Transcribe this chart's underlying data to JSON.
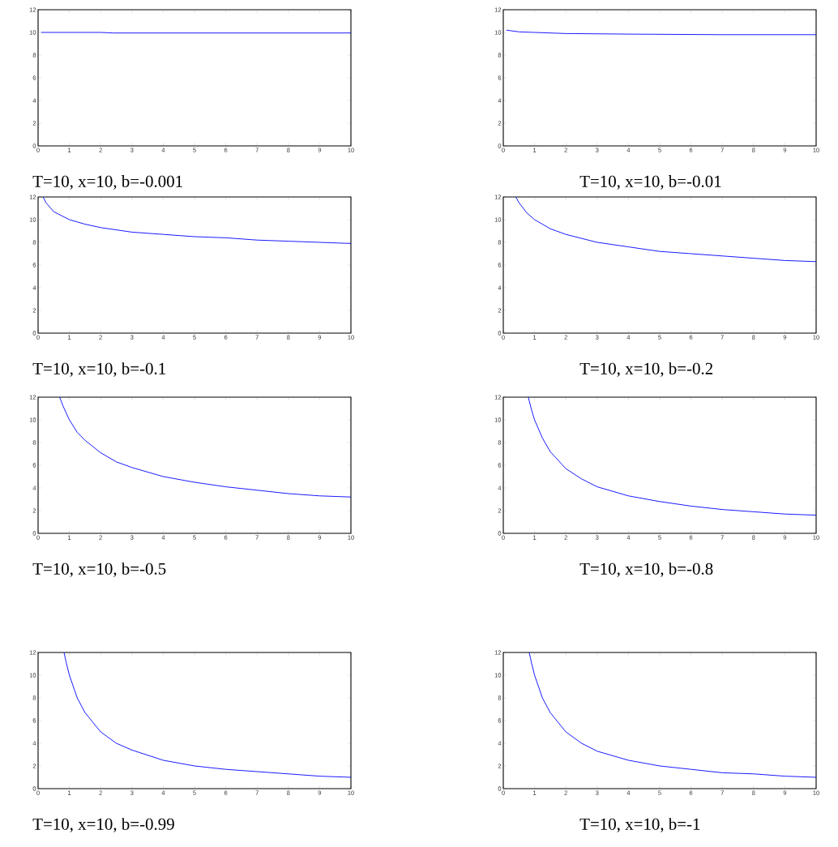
{
  "chart_data": [
    {
      "type": "line",
      "color": "#0000ff",
      "xlim": [
        0,
        10
      ],
      "ylim": [
        0,
        12
      ],
      "xticks": [
        0,
        1,
        2,
        3,
        4,
        5,
        6,
        7,
        8,
        9,
        10
      ],
      "yticks": [
        0,
        2,
        4,
        6,
        8,
        10,
        12
      ],
      "annotations": [
        "T=10, x=10, b=-0.001"
      ],
      "x": [
        0.1,
        2,
        2.4,
        10
      ],
      "values": [
        10.0,
        10.0,
        9.95,
        9.95
      ]
    },
    {
      "type": "line",
      "color": "#0000ff",
      "xlim": [
        0,
        10
      ],
      "ylim": [
        0,
        12
      ],
      "xticks": [
        0,
        1,
        2,
        3,
        4,
        5,
        6,
        7,
        8,
        9,
        10
      ],
      "yticks": [
        0,
        2,
        4,
        6,
        8,
        10,
        12
      ],
      "annotations": [
        "T=10, x=10, b=-0.01"
      ],
      "x": [
        0.1,
        0.5,
        1,
        2,
        4,
        7,
        10
      ],
      "values": [
        10.2,
        10.05,
        10.0,
        9.9,
        9.85,
        9.8,
        9.8
      ]
    },
    {
      "type": "line",
      "color": "#0000ff",
      "xlim": [
        0,
        10
      ],
      "ylim": [
        0,
        12
      ],
      "xticks": [
        0,
        1,
        2,
        3,
        4,
        5,
        6,
        7,
        8,
        9,
        10
      ],
      "yticks": [
        0,
        2,
        4,
        6,
        8,
        10,
        12
      ],
      "annotations": [
        "T=10, x=10, b=-0.1"
      ],
      "x": [
        0.16,
        0.25,
        0.5,
        1,
        1.5,
        2,
        3,
        4,
        5,
        6,
        7,
        8,
        9,
        10
      ],
      "values": [
        12,
        11.5,
        10.7,
        10,
        9.6,
        9.3,
        8.9,
        8.7,
        8.5,
        8.4,
        8.2,
        8.1,
        8.0,
        7.9
      ]
    },
    {
      "type": "line",
      "color": "#0000ff",
      "xlim": [
        0,
        10
      ],
      "ylim": [
        0,
        12
      ],
      "xticks": [
        0,
        1,
        2,
        3,
        4,
        5,
        6,
        7,
        8,
        9,
        10
      ],
      "yticks": [
        0,
        2,
        4,
        6,
        8,
        10,
        12
      ],
      "annotations": [
        "T=10, x=10, b=-0.2"
      ],
      "x": [
        0.4,
        0.5,
        0.75,
        1,
        1.5,
        2,
        3,
        4,
        5,
        6,
        7,
        8,
        9,
        10
      ],
      "values": [
        12,
        11.5,
        10.6,
        10,
        9.2,
        8.7,
        8.0,
        7.6,
        7.2,
        7.0,
        6.8,
        6.6,
        6.4,
        6.3
      ]
    },
    {
      "type": "line",
      "color": "#0000ff",
      "xlim": [
        0,
        10
      ],
      "ylim": [
        0,
        12
      ],
      "xticks": [
        0,
        1,
        2,
        3,
        4,
        5,
        6,
        7,
        8,
        9,
        10
      ],
      "yticks": [
        0,
        2,
        4,
        6,
        8,
        10,
        12
      ],
      "annotations": [
        "T=10, x=10, b=-0.5"
      ],
      "x": [
        0.69,
        0.8,
        1,
        1.25,
        1.5,
        2,
        2.5,
        3,
        4,
        5,
        6,
        7,
        8,
        9,
        10
      ],
      "values": [
        12,
        11.2,
        10,
        8.9,
        8.2,
        7.1,
        6.3,
        5.8,
        5.0,
        4.5,
        4.1,
        3.8,
        3.5,
        3.3,
        3.2
      ]
    },
    {
      "type": "line",
      "color": "#0000ff",
      "xlim": [
        0,
        10
      ],
      "ylim": [
        0,
        12
      ],
      "xticks": [
        0,
        1,
        2,
        3,
        4,
        5,
        6,
        7,
        8,
        9,
        10
      ],
      "yticks": [
        0,
        2,
        4,
        6,
        8,
        10,
        12
      ],
      "annotations": [
        "T=10, x=10, b=-0.8"
      ],
      "x": [
        0.8,
        0.9,
        1,
        1.25,
        1.5,
        2,
        2.5,
        3,
        4,
        5,
        6,
        7,
        8,
        9,
        10
      ],
      "values": [
        12,
        10.9,
        10,
        8.4,
        7.2,
        5.7,
        4.8,
        4.1,
        3.3,
        2.8,
        2.4,
        2.1,
        1.9,
        1.7,
        1.6
      ]
    },
    {
      "type": "line",
      "color": "#0000ff",
      "xlim": [
        0,
        10
      ],
      "ylim": [
        0,
        12
      ],
      "xticks": [
        0,
        1,
        2,
        3,
        4,
        5,
        6,
        7,
        8,
        9,
        10
      ],
      "yticks": [
        0,
        2,
        4,
        6,
        8,
        10,
        12
      ],
      "annotations": [
        "T=10, x=10, b=-0.99"
      ],
      "x": [
        0.83,
        0.9,
        1,
        1.25,
        1.5,
        2,
        2.5,
        3,
        4,
        5,
        6,
        7,
        8,
        9,
        10
      ],
      "values": [
        12,
        11.1,
        10,
        8.0,
        6.7,
        5.0,
        4.0,
        3.4,
        2.5,
        2.0,
        1.7,
        1.5,
        1.3,
        1.1,
        1.0
      ]
    },
    {
      "type": "line",
      "color": "#0000ff",
      "xlim": [
        0,
        10
      ],
      "ylim": [
        0,
        12
      ],
      "xticks": [
        0,
        1,
        2,
        3,
        4,
        5,
        6,
        7,
        8,
        9,
        10
      ],
      "yticks": [
        0,
        2,
        4,
        6,
        8,
        10,
        12
      ],
      "annotations": [
        "T=10, x=10, b=-1"
      ],
      "x": [
        0.83,
        0.9,
        1,
        1.25,
        1.5,
        2,
        2.5,
        3,
        4,
        5,
        6,
        7,
        8,
        9,
        10
      ],
      "values": [
        12,
        11.1,
        10,
        8.0,
        6.7,
        5.0,
        4.0,
        3.3,
        2.5,
        2.0,
        1.7,
        1.4,
        1.3,
        1.1,
        1.0
      ]
    }
  ]
}
